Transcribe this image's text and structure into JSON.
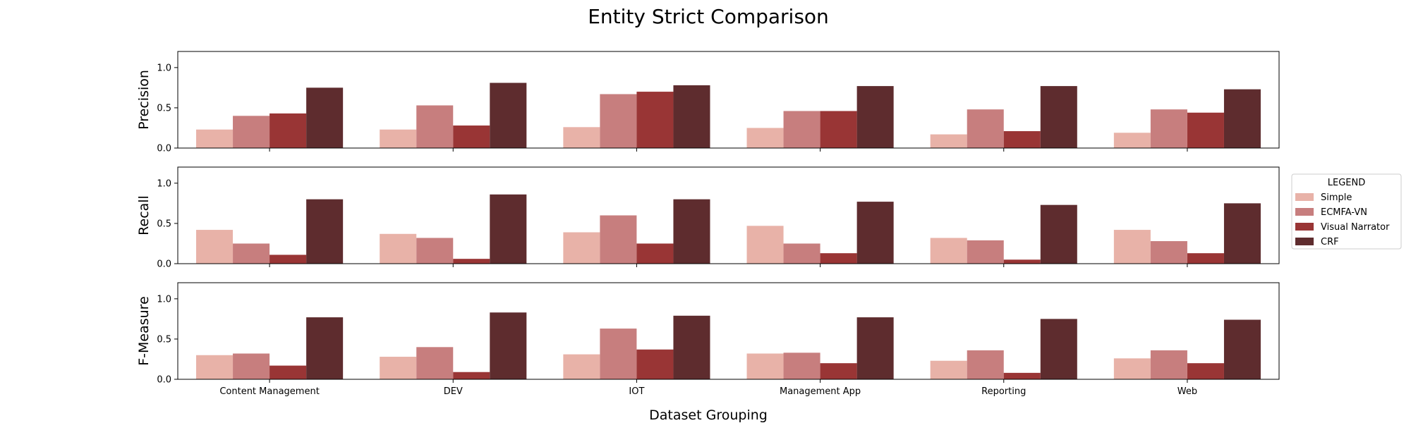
{
  "chart_data": {
    "type": "bar",
    "title": "Entity Strict Comparison",
    "xlabel": "Dataset Grouping",
    "categories": [
      "Content Management",
      "DEV",
      "IOT",
      "Management App",
      "Reporting",
      "Web"
    ],
    "ylim": [
      0,
      1.2
    ],
    "yticks": [
      "0.0",
      "0.5",
      "1.0"
    ],
    "grid": false,
    "legend": {
      "title": "LEGEND",
      "placement": "right",
      "entries": [
        "Simple",
        "ECMFA-VN",
        "Visual Narrator",
        "CRF"
      ]
    },
    "series_colors": [
      "#e8b2a8",
      "#c77e7e",
      "#993535",
      "#5e2c2e"
    ],
    "panels": [
      {
        "ylabel": "Precision",
        "series": [
          {
            "name": "Simple",
            "values": [
              0.23,
              0.23,
              0.26,
              0.25,
              0.17,
              0.19
            ]
          },
          {
            "name": "ECMFA-VN",
            "values": [
              0.4,
              0.53,
              0.67,
              0.46,
              0.48,
              0.48
            ]
          },
          {
            "name": "Visual Narrator",
            "values": [
              0.43,
              0.28,
              0.7,
              0.46,
              0.21,
              0.44
            ]
          },
          {
            "name": "CRF",
            "values": [
              0.75,
              0.81,
              0.78,
              0.77,
              0.77,
              0.73
            ]
          }
        ]
      },
      {
        "ylabel": "Recall",
        "series": [
          {
            "name": "Simple",
            "values": [
              0.42,
              0.37,
              0.39,
              0.47,
              0.32,
              0.42
            ]
          },
          {
            "name": "ECMFA-VN",
            "values": [
              0.25,
              0.32,
              0.6,
              0.25,
              0.29,
              0.28
            ]
          },
          {
            "name": "Visual Narrator",
            "values": [
              0.11,
              0.06,
              0.25,
              0.13,
              0.05,
              0.13
            ]
          },
          {
            "name": "CRF",
            "values": [
              0.8,
              0.86,
              0.8,
              0.77,
              0.73,
              0.75
            ]
          }
        ]
      },
      {
        "ylabel": "F-Measure",
        "series": [
          {
            "name": "Simple",
            "values": [
              0.3,
              0.28,
              0.31,
              0.32,
              0.23,
              0.26
            ]
          },
          {
            "name": "ECMFA-VN",
            "values": [
              0.32,
              0.4,
              0.63,
              0.33,
              0.36,
              0.36
            ]
          },
          {
            "name": "Visual Narrator",
            "values": [
              0.17,
              0.09,
              0.37,
              0.2,
              0.08,
              0.2
            ]
          },
          {
            "name": "CRF",
            "values": [
              0.77,
              0.83,
              0.79,
              0.77,
              0.75,
              0.74
            ]
          }
        ]
      }
    ]
  }
}
